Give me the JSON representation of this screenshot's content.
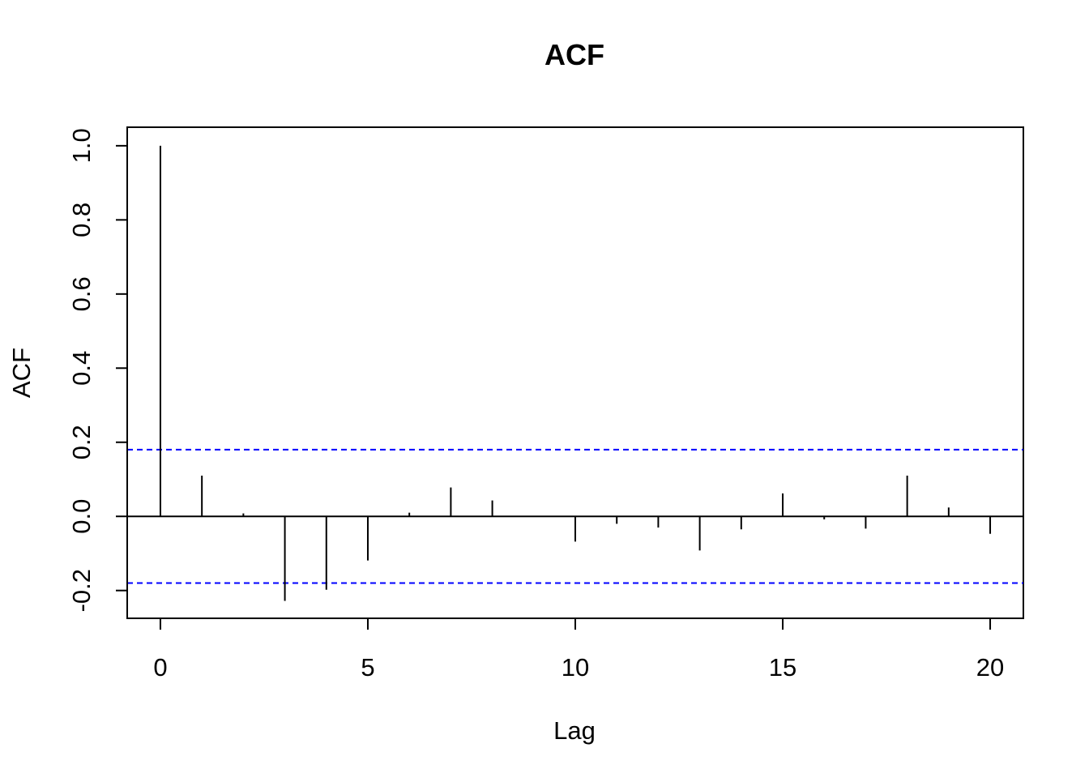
{
  "chart_data": {
    "type": "bar",
    "title": "ACF",
    "xlabel": "Lag",
    "ylabel": "ACF",
    "xlim": [
      -0.8,
      20.8
    ],
    "ylim": [
      -0.275,
      1.05
    ],
    "x_ticks": [
      0,
      5,
      10,
      15,
      20
    ],
    "x_tick_labels": [
      "0",
      "5",
      "10",
      "15",
      "20"
    ],
    "y_ticks": [
      -0.2,
      0.0,
      0.2,
      0.4,
      0.6,
      0.8,
      1.0
    ],
    "y_tick_labels": [
      "-0.2",
      "0.0",
      "0.2",
      "0.4",
      "0.6",
      "0.8",
      "1.0"
    ],
    "series": [
      {
        "lags": [
          0,
          1,
          2,
          3,
          4,
          5,
          6,
          7,
          8,
          9,
          10,
          11,
          12,
          13,
          14,
          15,
          16,
          17,
          18,
          19,
          20
        ],
        "values": [
          1.0,
          0.11,
          0.008,
          -0.228,
          -0.198,
          -0.119,
          0.01,
          0.078,
          0.043,
          -0.001,
          -0.068,
          -0.02,
          -0.03,
          -0.092,
          -0.035,
          0.062,
          -0.008,
          -0.033,
          0.11,
          0.024,
          -0.047
        ],
        "color": "#000000"
      }
    ],
    "confidence_bounds": {
      "upper": 0.18,
      "lower": -0.18,
      "color": "#0000ff",
      "style": "dashed"
    },
    "zero_line": true,
    "grid": false
  }
}
